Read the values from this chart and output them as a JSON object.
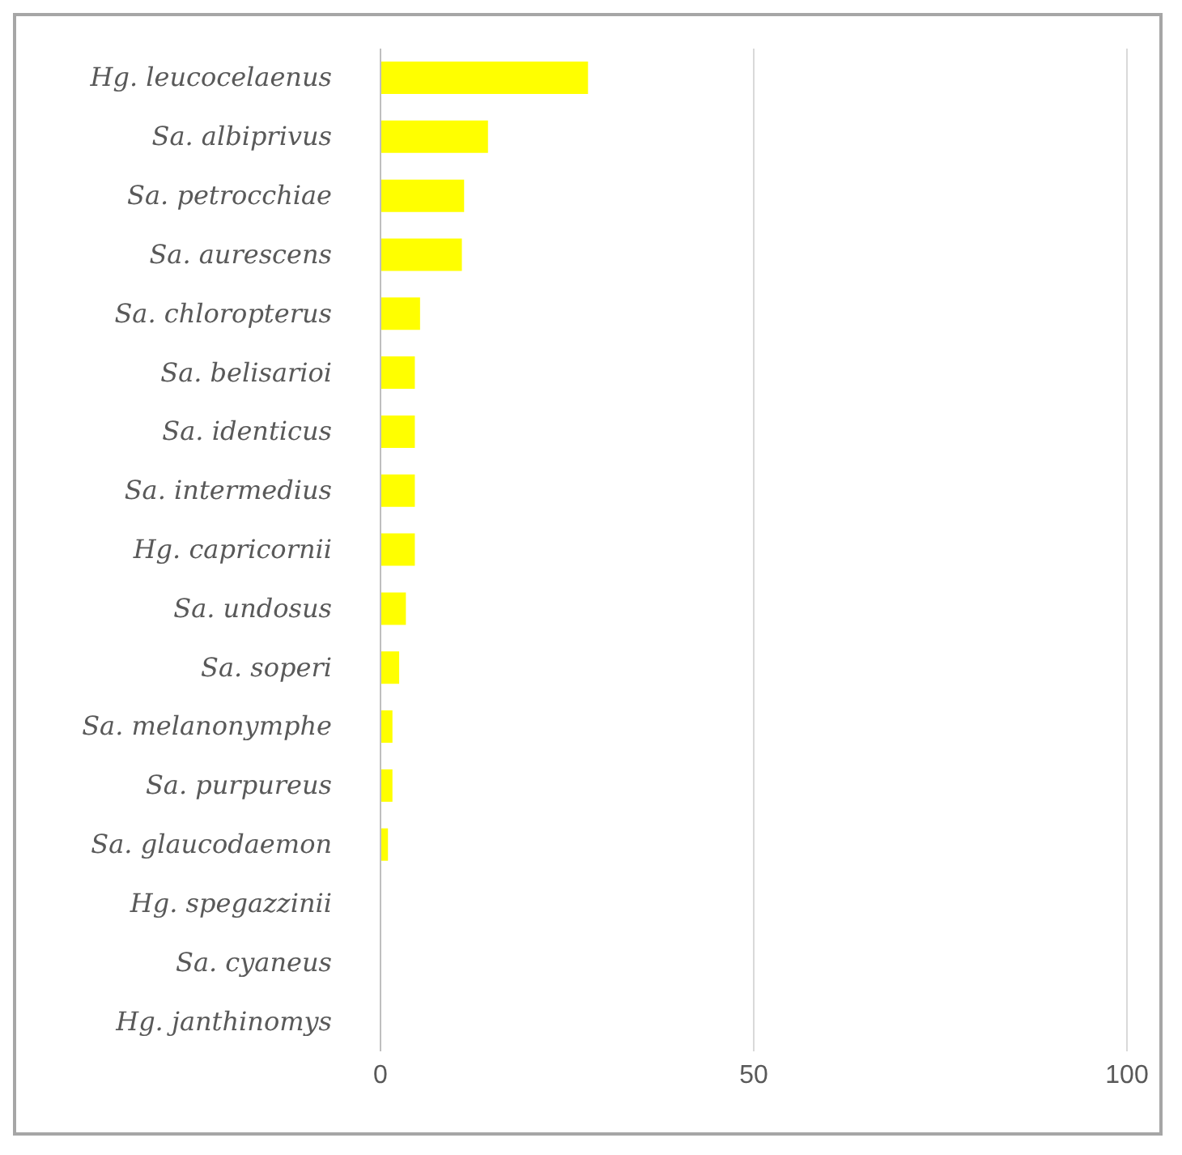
{
  "chart_data": {
    "type": "bar",
    "orientation": "horizontal",
    "categories": [
      "Hg. leucocelaenus",
      "Sa. albiprivus",
      "Sa. petrocchiae",
      "Sa. aurescens",
      "Sa. chloropterus",
      "Sa. belisarioi",
      "Sa. identicus",
      "Sa. intermedius",
      "Hg. capricornii",
      "Sa. undosus",
      "Sa. soperi",
      "Sa. melanonymphe",
      "Sa. purpureus",
      "Sa. glaucodaemon",
      "Hg. spegazzinii",
      "Sa. cyaneus",
      "Hg. janthinomys"
    ],
    "values": [
      27.8,
      14.4,
      11.2,
      10.9,
      5.3,
      4.6,
      4.6,
      4.6,
      4.6,
      3.4,
      2.5,
      1.6,
      1.6,
      1.0,
      0,
      0,
      0
    ],
    "color": "#ffff00",
    "xlim": [
      0,
      100
    ],
    "xticks": [
      0,
      50,
      100
    ],
    "grid": "x"
  }
}
